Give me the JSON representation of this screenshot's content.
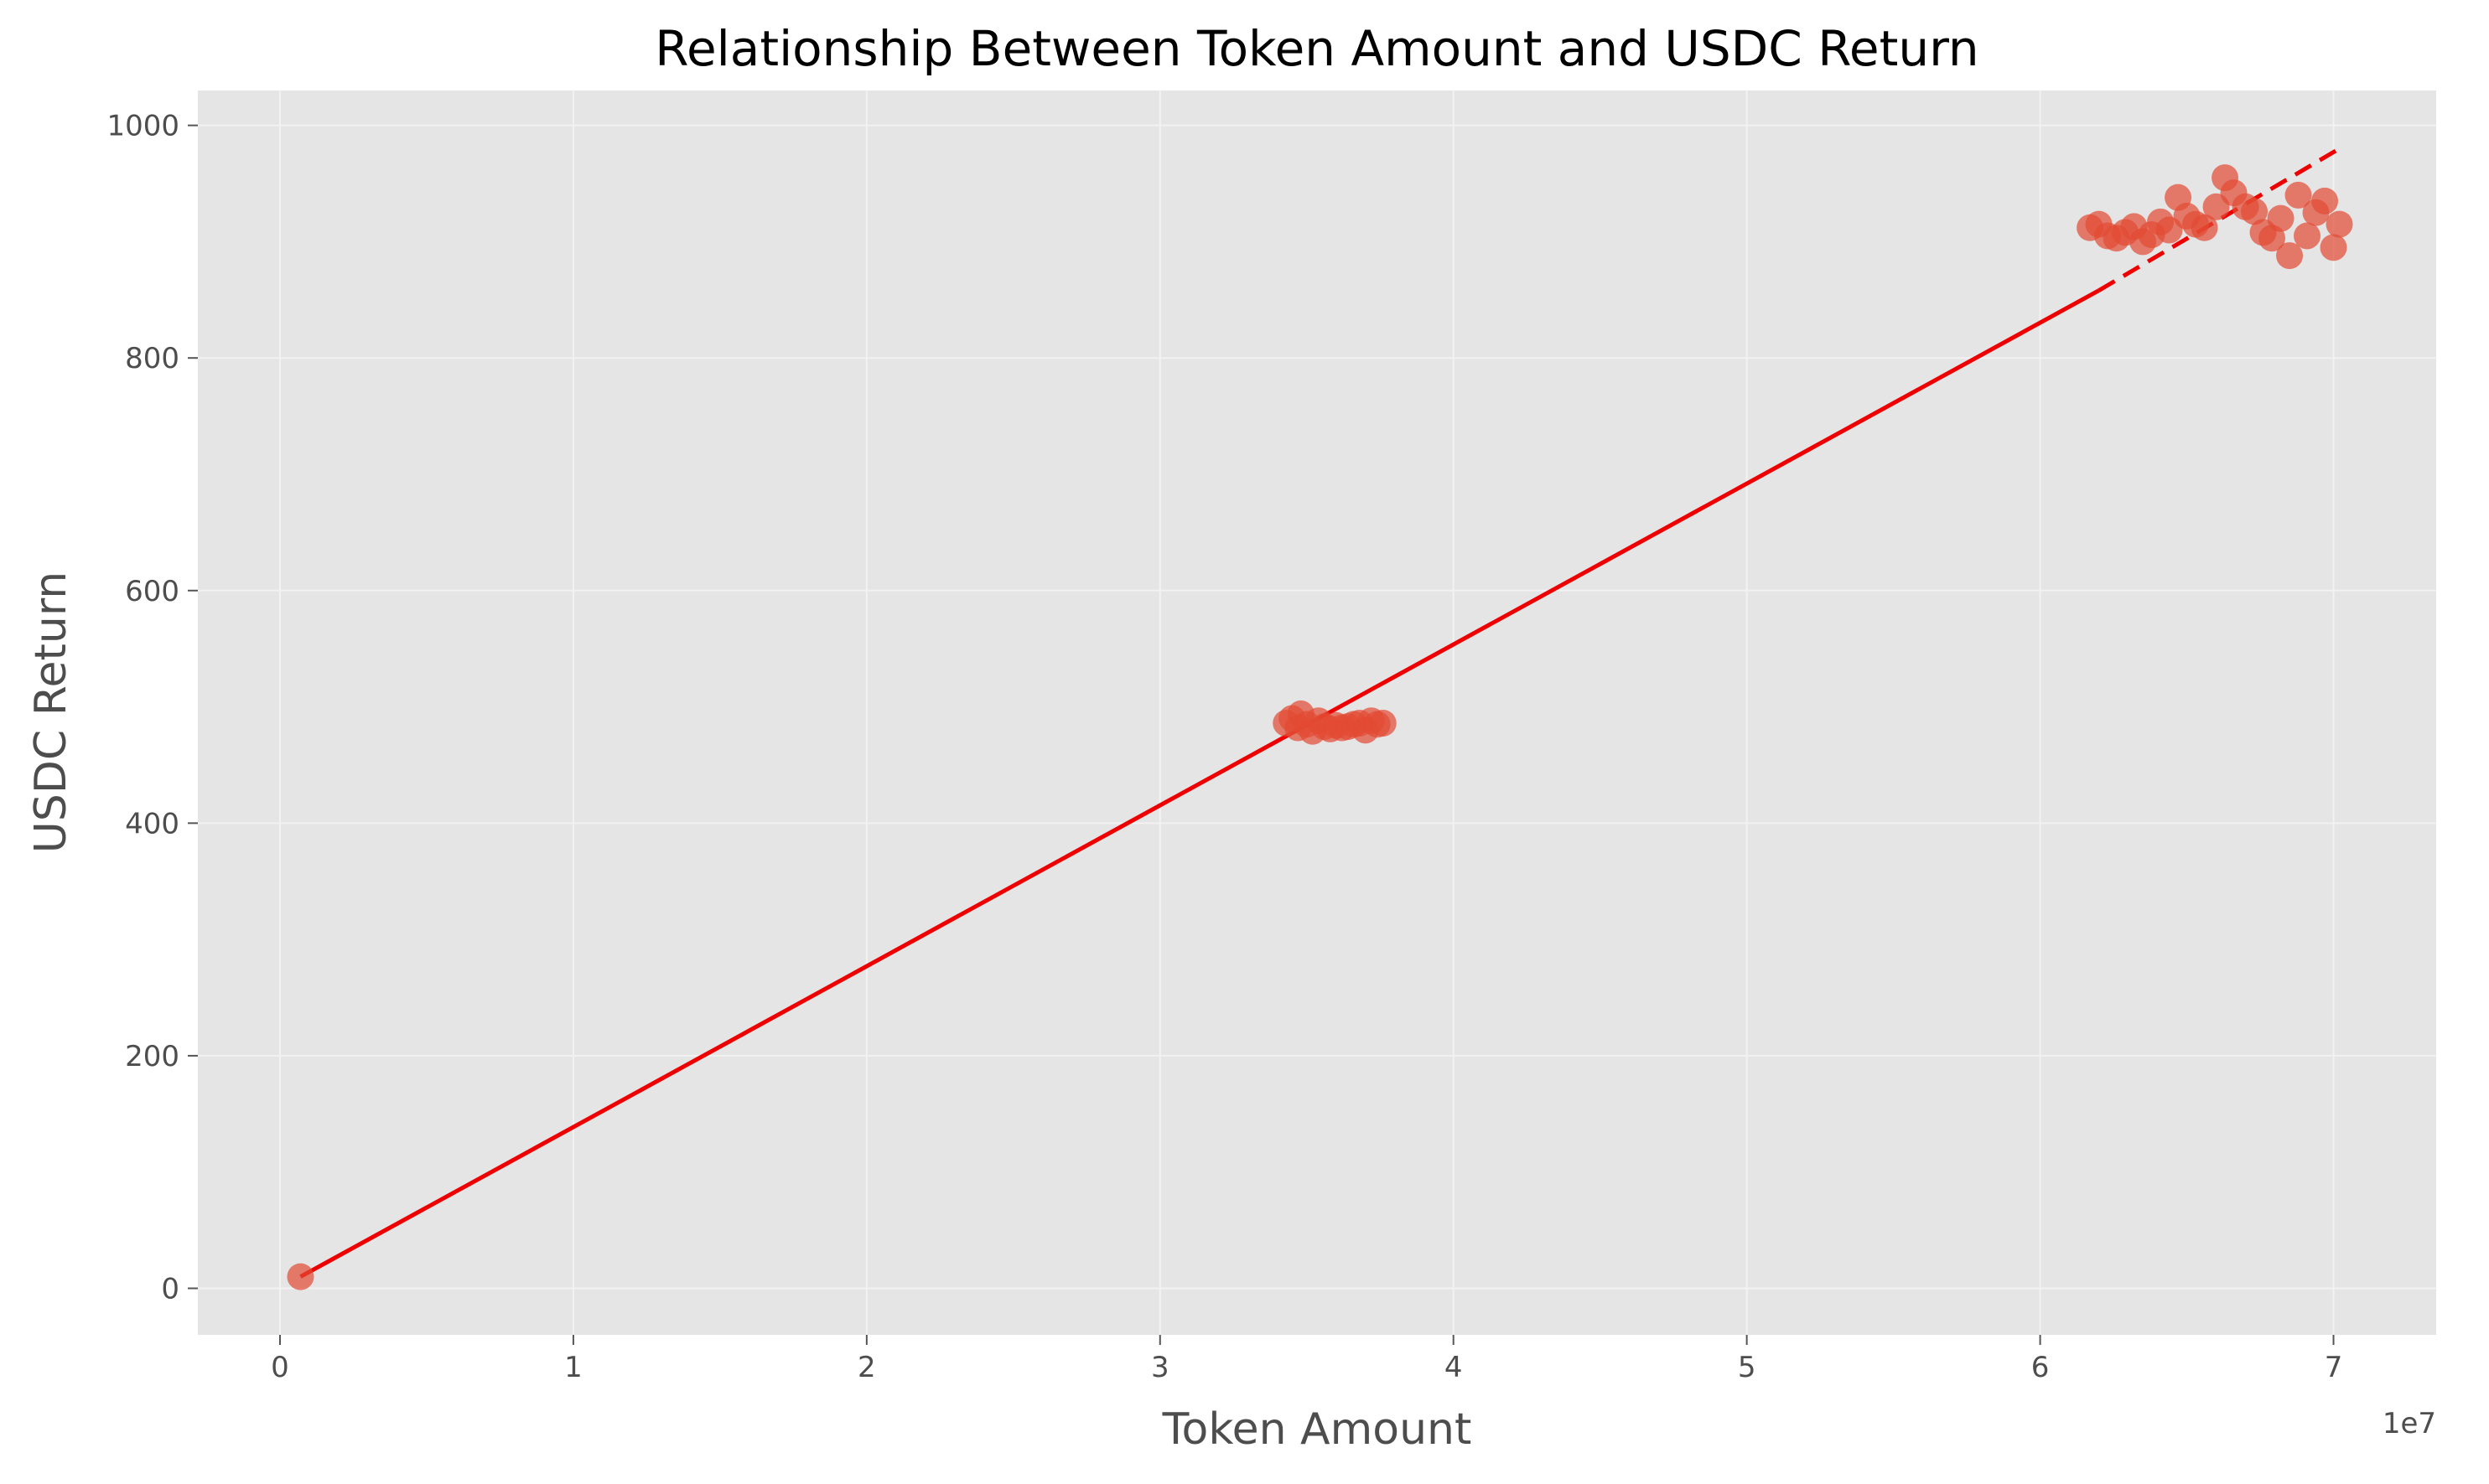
{
  "chart_data": {
    "type": "scatter",
    "title": "Relationship Between Token Amount and USDC Return",
    "xlabel": "Token Amount",
    "ylabel": "USDC Return",
    "x_offset_label": "1e7",
    "xlim": [
      -0.28,
      7.35
    ],
    "ylim": [
      -40,
      1030
    ],
    "x_scale_factor": 10000000,
    "x_ticks": [
      0,
      1,
      2,
      3,
      4,
      5,
      6,
      7
    ],
    "x_tick_labels": [
      "0",
      "1",
      "2",
      "3",
      "4",
      "5",
      "6",
      "7"
    ],
    "y_ticks": [
      0,
      200,
      400,
      600,
      800,
      1000
    ],
    "y_tick_labels": [
      "0",
      "200",
      "400",
      "600",
      "800",
      "1000"
    ],
    "grid": true,
    "legend": "none",
    "colors": {
      "background": "#e5e5e5",
      "grid": "#f2f2f2",
      "points": "#e24a33",
      "fit_line": "#ee0000"
    },
    "points": [
      {
        "x": 0.07,
        "y": 10
      },
      {
        "x": 3.43,
        "y": 486
      },
      {
        "x": 3.45,
        "y": 490
      },
      {
        "x": 3.47,
        "y": 482
      },
      {
        "x": 3.48,
        "y": 494
      },
      {
        "x": 3.5,
        "y": 485
      },
      {
        "x": 3.52,
        "y": 479
      },
      {
        "x": 3.54,
        "y": 488
      },
      {
        "x": 3.56,
        "y": 483
      },
      {
        "x": 3.58,
        "y": 481
      },
      {
        "x": 3.6,
        "y": 484
      },
      {
        "x": 3.62,
        "y": 482
      },
      {
        "x": 3.64,
        "y": 483
      },
      {
        "x": 3.66,
        "y": 485
      },
      {
        "x": 3.68,
        "y": 486
      },
      {
        "x": 3.7,
        "y": 480
      },
      {
        "x": 3.72,
        "y": 488
      },
      {
        "x": 3.74,
        "y": 485
      },
      {
        "x": 3.76,
        "y": 486
      },
      {
        "x": 6.17,
        "y": 912
      },
      {
        "x": 6.2,
        "y": 915
      },
      {
        "x": 6.23,
        "y": 905
      },
      {
        "x": 6.26,
        "y": 903
      },
      {
        "x": 6.29,
        "y": 908
      },
      {
        "x": 6.32,
        "y": 913
      },
      {
        "x": 6.35,
        "y": 900
      },
      {
        "x": 6.38,
        "y": 906
      },
      {
        "x": 6.41,
        "y": 917
      },
      {
        "x": 6.44,
        "y": 910
      },
      {
        "x": 6.47,
        "y": 938
      },
      {
        "x": 6.5,
        "y": 922
      },
      {
        "x": 6.53,
        "y": 915
      },
      {
        "x": 6.56,
        "y": 912
      },
      {
        "x": 6.6,
        "y": 930
      },
      {
        "x": 6.63,
        "y": 955
      },
      {
        "x": 6.66,
        "y": 942
      },
      {
        "x": 6.7,
        "y": 930
      },
      {
        "x": 6.73,
        "y": 926
      },
      {
        "x": 6.76,
        "y": 908
      },
      {
        "x": 6.79,
        "y": 903
      },
      {
        "x": 6.82,
        "y": 920
      },
      {
        "x": 6.85,
        "y": 888
      },
      {
        "x": 6.88,
        "y": 940
      },
      {
        "x": 6.91,
        "y": 905
      },
      {
        "x": 6.94,
        "y": 925
      },
      {
        "x": 6.97,
        "y": 935
      },
      {
        "x": 7.0,
        "y": 895
      },
      {
        "x": 7.02,
        "y": 915
      }
    ],
    "fit_line": {
      "solid": {
        "x": [
          0.07,
          6.2
        ],
        "y": [
          10,
          858
        ]
      },
      "dashed": {
        "x": [
          6.2,
          7.02
        ],
        "y": [
          858,
          980
        ]
      }
    }
  }
}
